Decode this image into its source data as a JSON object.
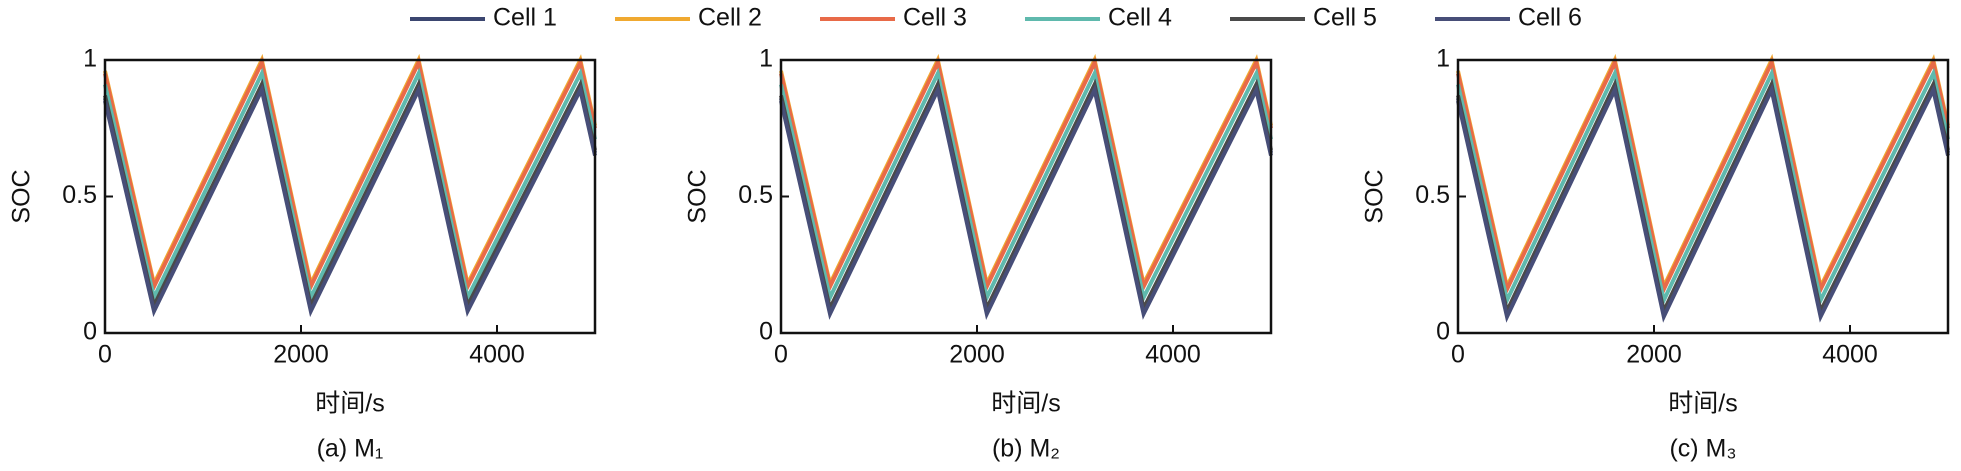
{
  "chart_data": [
    {
      "type": "line",
      "caption": "(a) M₁",
      "x_label": "时间/s",
      "y_label": "SOC",
      "x": [
        0,
        500,
        1600,
        2100,
        3200,
        3700,
        4850,
        5000
      ],
      "xlim": [
        0,
        5000
      ],
      "xticks": [
        0,
        2000,
        4000
      ],
      "ylim": [
        0,
        1
      ],
      "yticks": [
        0,
        0.5,
        1
      ],
      "series": [
        {
          "name": "Cell 1",
          "color": "#3b4670",
          "values": [
            0.86,
            0.09,
            0.9,
            0.09,
            0.9,
            0.09,
            0.9,
            0.66
          ]
        },
        {
          "name": "Cell 2",
          "color": "#f0a930",
          "values": [
            0.96,
            0.18,
            1.0,
            0.18,
            1.0,
            0.18,
            1.0,
            0.76
          ]
        },
        {
          "name": "Cell 3",
          "color": "#e86a48",
          "values": [
            0.95,
            0.17,
            0.99,
            0.17,
            0.99,
            0.17,
            0.99,
            0.75
          ]
        },
        {
          "name": "Cell 4",
          "color": "#5fb9ad",
          "values": [
            0.91,
            0.13,
            0.95,
            0.13,
            0.95,
            0.13,
            0.95,
            0.71
          ]
        },
        {
          "name": "Cell 5",
          "color": "#4a4a4a",
          "values": [
            0.87,
            0.1,
            0.91,
            0.1,
            0.91,
            0.1,
            0.91,
            0.67
          ]
        },
        {
          "name": "Cell 6",
          "color": "#474e78",
          "values": [
            0.85,
            0.08,
            0.89,
            0.08,
            0.89,
            0.08,
            0.89,
            0.65
          ]
        }
      ]
    },
    {
      "type": "line",
      "caption": "(b) M₂",
      "x_label": "时间/s",
      "y_label": "SOC",
      "x": [
        0,
        500,
        1600,
        2100,
        3200,
        3700,
        4850,
        5000
      ],
      "xlim": [
        0,
        5000
      ],
      "xticks": [
        0,
        2000,
        4000
      ],
      "ylim": [
        0,
        1
      ],
      "yticks": [
        0,
        0.5,
        1
      ],
      "series": [
        {
          "name": "Cell 1",
          "color": "#3b4670",
          "values": [
            0.86,
            0.08,
            0.9,
            0.08,
            0.9,
            0.08,
            0.9,
            0.66
          ]
        },
        {
          "name": "Cell 2",
          "color": "#f0a930",
          "values": [
            0.96,
            0.18,
            1.0,
            0.18,
            1.0,
            0.18,
            1.0,
            0.76
          ]
        },
        {
          "name": "Cell 3",
          "color": "#e86a48",
          "values": [
            0.95,
            0.17,
            0.99,
            0.17,
            0.99,
            0.17,
            0.99,
            0.75
          ]
        },
        {
          "name": "Cell 4",
          "color": "#5fb9ad",
          "values": [
            0.91,
            0.13,
            0.95,
            0.13,
            0.95,
            0.13,
            0.95,
            0.71
          ]
        },
        {
          "name": "Cell 5",
          "color": "#4a4a4a",
          "values": [
            0.87,
            0.09,
            0.91,
            0.09,
            0.91,
            0.09,
            0.91,
            0.67
          ]
        },
        {
          "name": "Cell 6",
          "color": "#474e78",
          "values": [
            0.85,
            0.07,
            0.89,
            0.07,
            0.89,
            0.07,
            0.89,
            0.65
          ]
        }
      ]
    },
    {
      "type": "line",
      "caption": "(c) M₃",
      "x_label": "时间/s",
      "y_label": "SOC",
      "x": [
        0,
        500,
        1600,
        2100,
        3200,
        3700,
        4850,
        5000
      ],
      "xlim": [
        0,
        5000
      ],
      "xticks": [
        0,
        2000,
        4000
      ],
      "ylim": [
        0,
        1
      ],
      "yticks": [
        0,
        0.5,
        1
      ],
      "series": [
        {
          "name": "Cell 1",
          "color": "#3b4670",
          "values": [
            0.86,
            0.07,
            0.9,
            0.07,
            0.9,
            0.07,
            0.9,
            0.66
          ]
        },
        {
          "name": "Cell 2",
          "color": "#f0a930",
          "values": [
            0.96,
            0.17,
            1.0,
            0.17,
            1.0,
            0.17,
            1.0,
            0.76
          ]
        },
        {
          "name": "Cell 3",
          "color": "#e86a48",
          "values": [
            0.95,
            0.16,
            0.99,
            0.16,
            0.99,
            0.16,
            0.99,
            0.75
          ]
        },
        {
          "name": "Cell 4",
          "color": "#5fb9ad",
          "values": [
            0.91,
            0.12,
            0.95,
            0.12,
            0.95,
            0.12,
            0.95,
            0.71
          ]
        },
        {
          "name": "Cell 5",
          "color": "#4a4a4a",
          "values": [
            0.87,
            0.08,
            0.91,
            0.08,
            0.91,
            0.08,
            0.91,
            0.67
          ]
        },
        {
          "name": "Cell 6",
          "color": "#474e78",
          "values": [
            0.85,
            0.06,
            0.89,
            0.06,
            0.89,
            0.06,
            0.89,
            0.65
          ]
        }
      ]
    }
  ]
}
